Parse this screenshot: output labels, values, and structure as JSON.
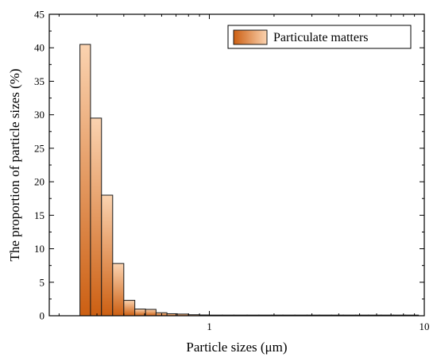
{
  "chart_data": {
    "type": "bar",
    "title": "",
    "xlabel": "Particle sizes (μm)",
    "ylabel": "The proportion of particle sizes (%)",
    "x_scale": "log",
    "xlim": [
      0.18,
      10
    ],
    "ylim": [
      0,
      45
    ],
    "x_tick_labels": [
      "1",
      "10"
    ],
    "y_tick_labels": [
      "0",
      "5",
      "10",
      "15",
      "20",
      "25",
      "30",
      "35",
      "40",
      "45"
    ],
    "grid": false,
    "legend_position": "top-right",
    "series": [
      {
        "name": "Particulate matters",
        "bin_edges": [
          0.25,
          0.28,
          0.315,
          0.355,
          0.4,
          0.45,
          0.505,
          0.565,
          0.635,
          0.71,
          0.8,
          0.9,
          1.0,
          1.15,
          1.3,
          1.5,
          1.7,
          1.95,
          2.2,
          2.5,
          2.85,
          3.25,
          3.7,
          4.2,
          4.8,
          5.5,
          6.3,
          7.2,
          8.2,
          9.4
        ],
        "values": [
          40.5,
          29.5,
          18.0,
          7.8,
          2.3,
          1.0,
          0.95,
          0.45,
          0.3,
          0.25,
          0.15,
          0.12,
          0.1,
          0.1,
          0.1,
          0.1,
          0.1,
          0.1,
          0.1,
          0.1,
          0.1,
          0.1,
          0.1,
          0.1,
          0.1,
          0.1,
          0.1,
          0.1,
          0.1
        ]
      }
    ],
    "colors": {
      "bar_top": "#fbd3b0",
      "bar_bottom": "#cc5f12",
      "bar_edge": "#1a1a1a"
    }
  }
}
